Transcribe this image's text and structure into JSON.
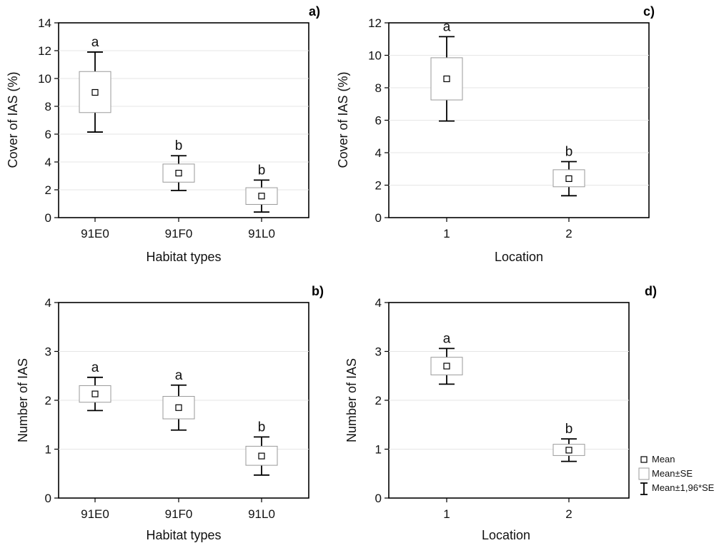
{
  "chart_data": [
    {
      "type": "box",
      "panel_label": "a)",
      "xlabel": "Habitat types",
      "ylabel": "Cover of IAS (%)",
      "ylim": [
        0,
        14
      ],
      "yticks": [
        "0",
        "2",
        "4",
        "6",
        "8",
        "10",
        "12",
        "14"
      ],
      "categories": [
        "91E0",
        "91F0",
        "91L0"
      ],
      "mean": [
        9.0,
        3.2,
        1.55
      ],
      "se_low": [
        7.55,
        2.55,
        0.95
      ],
      "se_high": [
        10.5,
        3.85,
        2.15
      ],
      "ci_low": [
        6.15,
        1.95,
        0.4
      ],
      "ci_high": [
        11.9,
        4.45,
        2.7
      ],
      "groups": [
        "a",
        "b",
        "b"
      ]
    },
    {
      "type": "box",
      "panel_label": "c)",
      "xlabel": "Location",
      "ylabel": "Cover of IAS (%)",
      "ylim": [
        0,
        12
      ],
      "yticks": [
        "0",
        "2",
        "4",
        "6",
        "8",
        "10",
        "12"
      ],
      "categories": [
        "1",
        "2"
      ],
      "mean": [
        8.55,
        2.4
      ],
      "se_low": [
        7.25,
        1.9
      ],
      "se_high": [
        9.85,
        2.95
      ],
      "ci_low": [
        5.95,
        1.35
      ],
      "ci_high": [
        11.15,
        3.45
      ],
      "groups": [
        "a",
        "b"
      ]
    },
    {
      "type": "box",
      "panel_label": "b)",
      "xlabel": "Habitat types",
      "ylabel": "Number of IAS",
      "ylim": [
        0,
        4
      ],
      "yticks": [
        "0",
        "1",
        "2",
        "3",
        "4"
      ],
      "categories": [
        "91E0",
        "91F0",
        "91L0"
      ],
      "mean": [
        2.13,
        1.85,
        0.86
      ],
      "se_low": [
        1.96,
        1.62,
        0.67
      ],
      "se_high": [
        2.3,
        2.08,
        1.06
      ],
      "ci_low": [
        1.79,
        1.39,
        0.47
      ],
      "ci_high": [
        2.47,
        2.31,
        1.25
      ],
      "groups": [
        "a",
        "a",
        "b"
      ]
    },
    {
      "type": "box",
      "panel_label": "d)",
      "xlabel": "Location",
      "ylabel": "Number of IAS",
      "ylim": [
        0,
        4
      ],
      "yticks": [
        "0",
        "1",
        "2",
        "3",
        "4"
      ],
      "categories": [
        "1",
        "2"
      ],
      "mean": [
        2.7,
        0.98
      ],
      "se_low": [
        2.52,
        0.87
      ],
      "se_high": [
        2.88,
        1.1
      ],
      "ci_low": [
        2.33,
        0.75
      ],
      "ci_high": [
        3.06,
        1.21
      ],
      "groups": [
        "a",
        "b"
      ]
    }
  ],
  "legend": {
    "mean": "Mean",
    "se": "Mean±SE",
    "ci": "Mean±1,96*SE"
  }
}
